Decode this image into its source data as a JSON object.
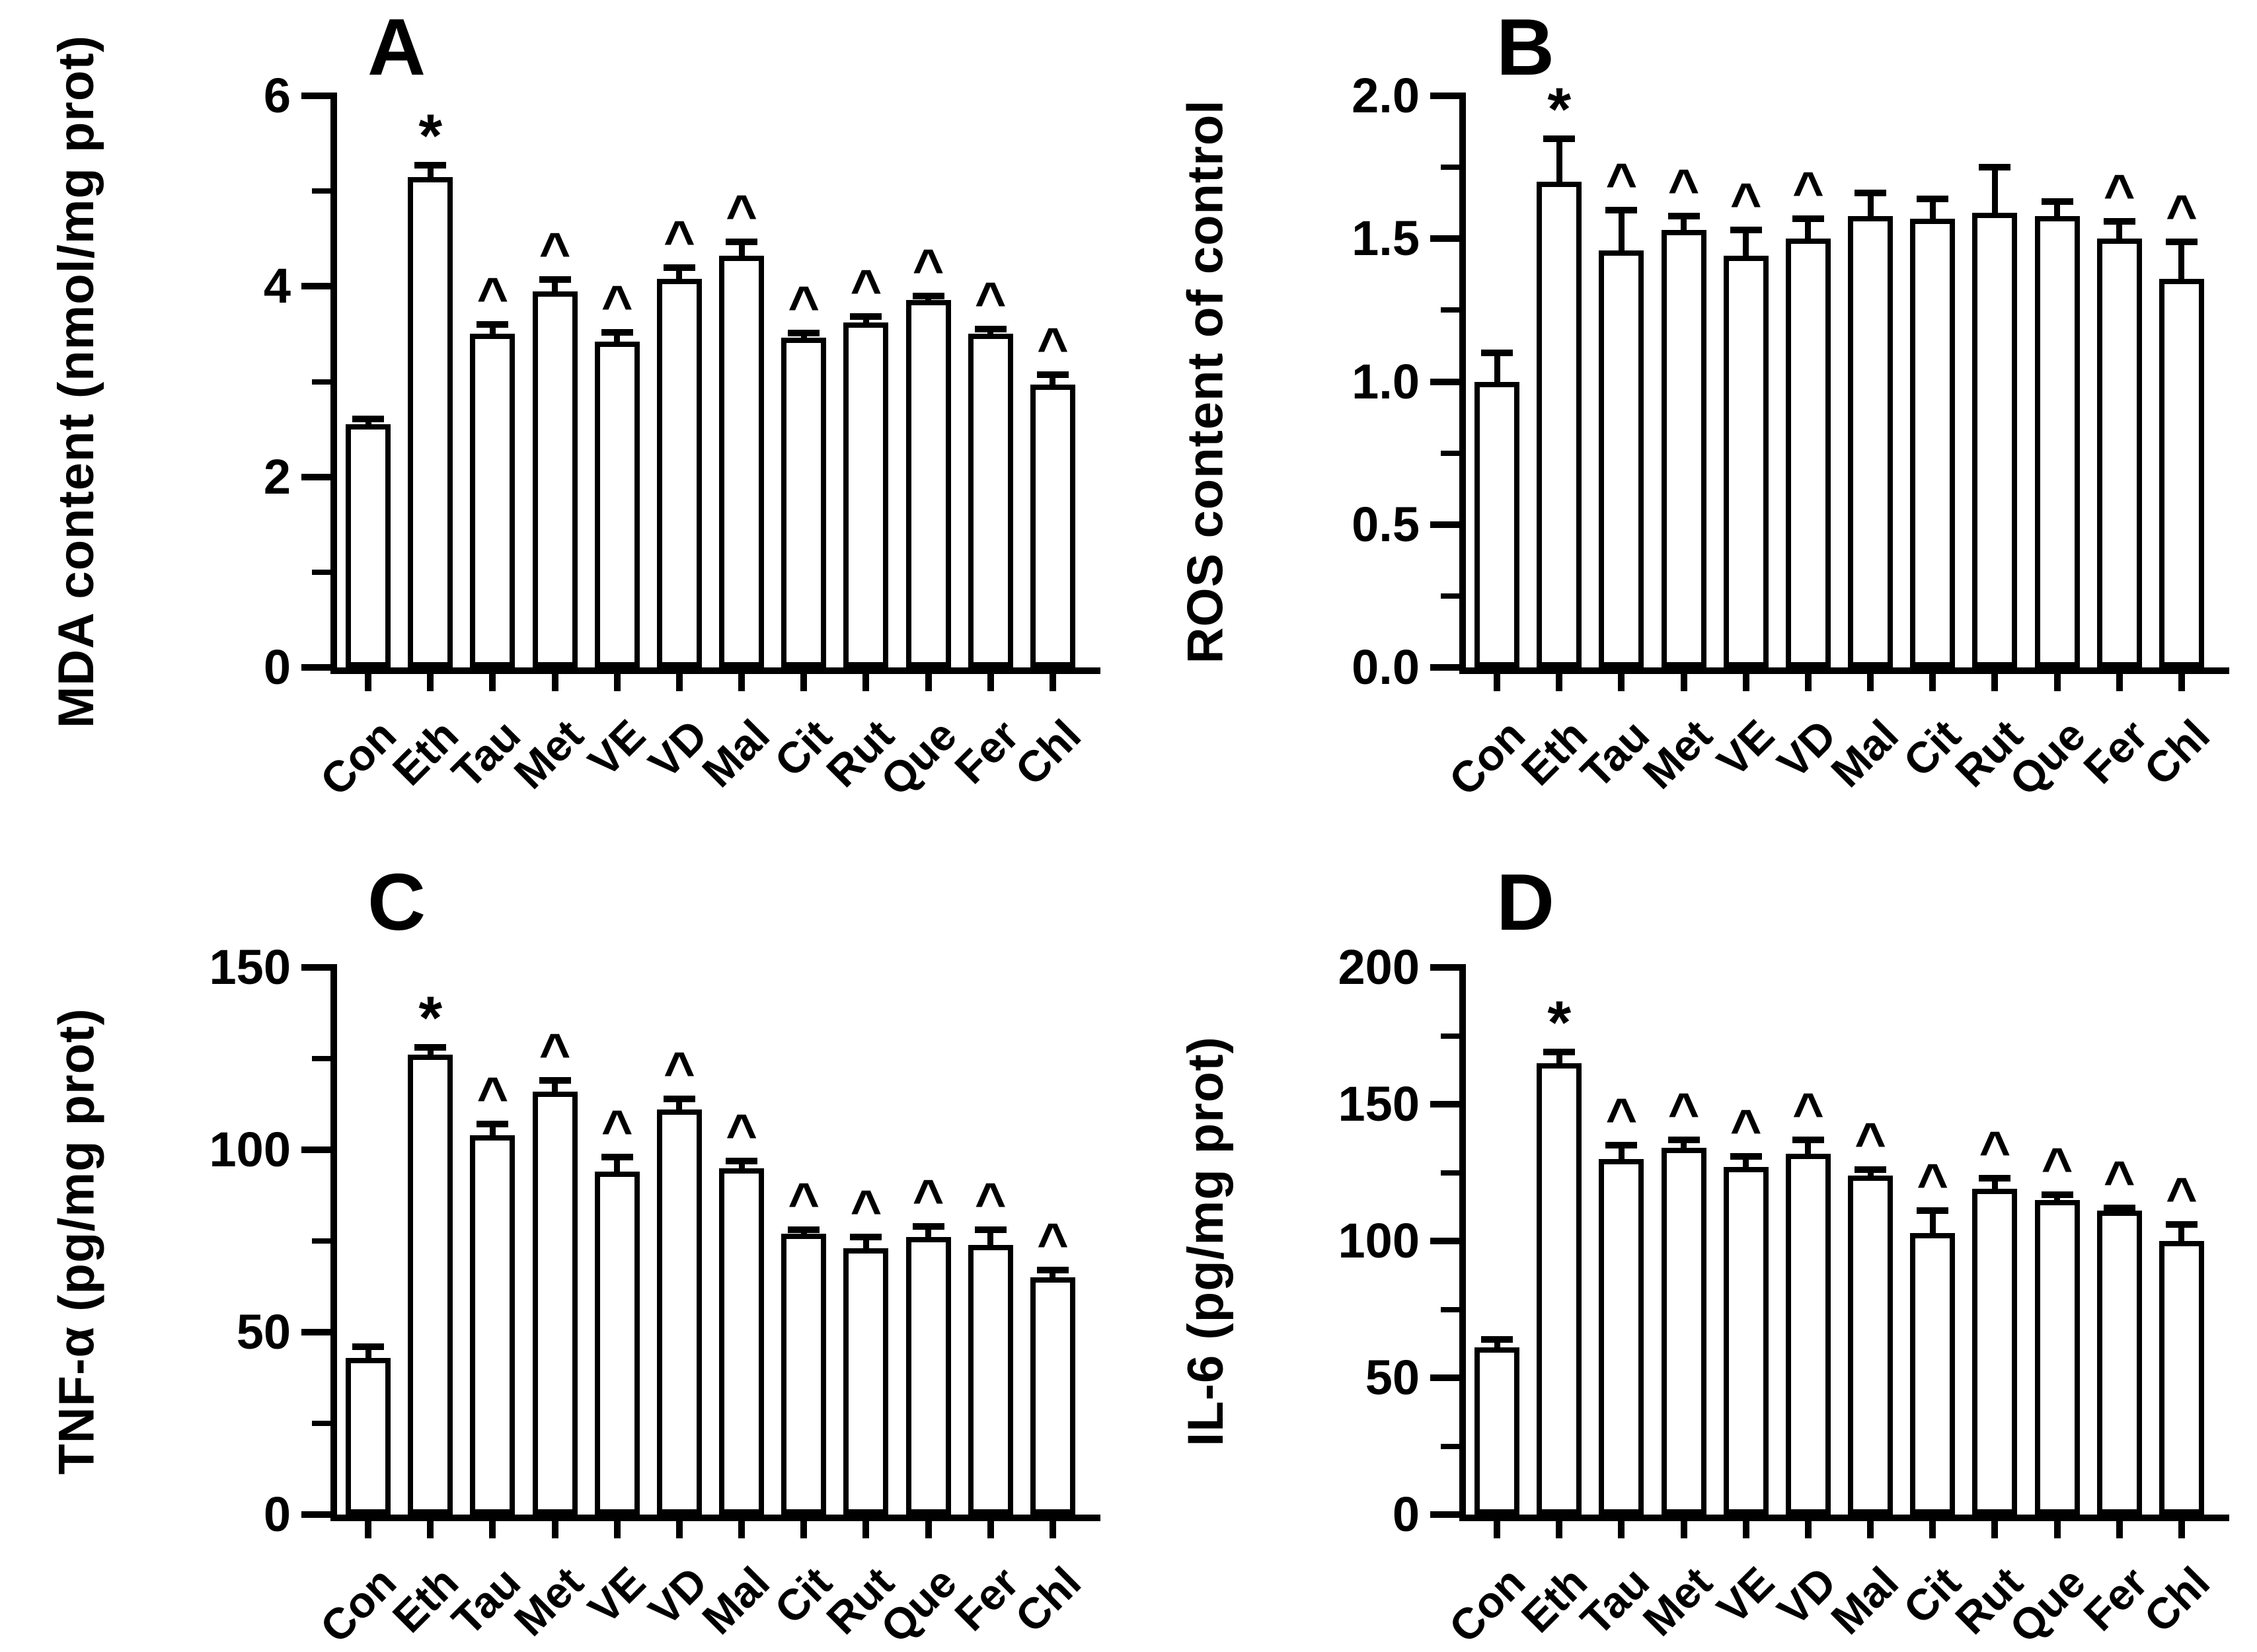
{
  "figure": {
    "background": "#ffffff",
    "ink_color": "#000000",
    "bar_fill": "#ffffff",
    "significance_symbols": {
      "vs_control": "*",
      "vs_ethanol": "^"
    }
  },
  "chart_data": [
    {
      "type": "bar",
      "panel_label": "A",
      "title": "",
      "xlabel": "",
      "ylabel": "MDA content (nmol/mg prot)",
      "categories": [
        "Con",
        "Eth",
        "Tau",
        "Met",
        "VE",
        "VD",
        "Mal",
        "Cit",
        "Rut",
        "Que",
        "Fer",
        "Chl"
      ],
      "values": [
        2.55,
        5.15,
        3.5,
        3.95,
        3.42,
        4.08,
        4.32,
        3.46,
        3.62,
        3.86,
        3.5,
        2.97
      ],
      "errors": [
        0.06,
        0.12,
        0.1,
        0.12,
        0.1,
        0.12,
        0.15,
        0.05,
        0.06,
        0.04,
        0.05,
        0.1
      ],
      "sig_markers": [
        "",
        "*",
        "^",
        "^",
        "^",
        "^",
        "^",
        "^",
        "^",
        "^",
        "^",
        "^"
      ],
      "ylim": [
        0,
        6
      ],
      "yticks": [
        0,
        2,
        4,
        6
      ],
      "ytick_labels": [
        "0",
        "2",
        "4",
        "6"
      ],
      "minor_yticks": [
        1,
        3,
        5
      ],
      "grid": false,
      "legend": "none"
    },
    {
      "type": "bar",
      "panel_label": "B",
      "title": "",
      "xlabel": "",
      "ylabel": "ROS content of control",
      "categories": [
        "Con",
        "Eth",
        "Tau",
        "Met",
        "VE",
        "VD",
        "Mal",
        "Cit",
        "Rut",
        "Que",
        "Fer",
        "Chl"
      ],
      "values": [
        1.0,
        1.7,
        1.46,
        1.53,
        1.44,
        1.5,
        1.58,
        1.57,
        1.59,
        1.58,
        1.5,
        1.36
      ],
      "errors": [
        0.1,
        0.15,
        0.14,
        0.05,
        0.09,
        0.07,
        0.08,
        0.07,
        0.16,
        0.05,
        0.06,
        0.13
      ],
      "sig_markers": [
        "",
        "*",
        "^",
        "^",
        "^",
        "^",
        "",
        "",
        "",
        "",
        "^",
        "^"
      ],
      "ylim": [
        0,
        2.0
      ],
      "yticks": [
        0,
        0.5,
        1.0,
        1.5,
        2.0
      ],
      "ytick_labels": [
        "0.0",
        "0.5",
        "1.0",
        "1.5",
        "2.0"
      ],
      "minor_yticks": [
        0.25,
        0.75,
        1.25,
        1.75
      ],
      "grid": false,
      "legend": "none"
    },
    {
      "type": "bar",
      "panel_label": "C",
      "title": "",
      "xlabel": "",
      "ylabel": "TNF-α (pg/mg prot)",
      "categories": [
        "Con",
        "Eth",
        "Tau",
        "Met",
        "VE",
        "VD",
        "Mal",
        "Cit",
        "Rut",
        "Que",
        "Fer",
        "Chl"
      ],
      "values": [
        43,
        126,
        104,
        116,
        94,
        111,
        95,
        77,
        73,
        76,
        74,
        65
      ],
      "errors": [
        3,
        2,
        3,
        3,
        4,
        3,
        2,
        1,
        3,
        3,
        4,
        2
      ],
      "sig_markers": [
        "",
        "*",
        "^",
        "^",
        "^",
        "^",
        "^",
        "^",
        "^",
        "^",
        "^",
        "^"
      ],
      "ylim": [
        0,
        150
      ],
      "yticks": [
        0,
        50,
        100,
        150
      ],
      "ytick_labels": [
        "0",
        "50",
        "100",
        "150"
      ],
      "minor_yticks": [
        25,
        75,
        125
      ],
      "grid": false,
      "legend": "none"
    },
    {
      "type": "bar",
      "panel_label": "D",
      "title": "",
      "xlabel": "",
      "ylabel": "IL-6 (pg/mg prot)",
      "categories": [
        "Con",
        "Eth",
        "Tau",
        "Met",
        "VE",
        "VD",
        "Mal",
        "Cit",
        "Rut",
        "Que",
        "Fer",
        "Chl"
      ],
      "values": [
        61,
        165,
        130,
        134,
        127,
        132,
        124,
        103,
        119,
        115,
        111,
        100
      ],
      "errors": [
        3,
        4,
        5,
        3,
        4,
        5,
        2,
        8,
        4,
        2,
        1,
        6
      ],
      "sig_markers": [
        "",
        "*",
        "^",
        "^",
        "^",
        "^",
        "^",
        "^",
        "^",
        "^",
        "^",
        "^"
      ],
      "ylim": [
        0,
        200
      ],
      "yticks": [
        0,
        50,
        100,
        150,
        200
      ],
      "ytick_labels": [
        "0",
        "50",
        "100",
        "150",
        "200"
      ],
      "minor_yticks": [
        25,
        75,
        125,
        175
      ],
      "grid": false,
      "legend": "none"
    }
  ]
}
